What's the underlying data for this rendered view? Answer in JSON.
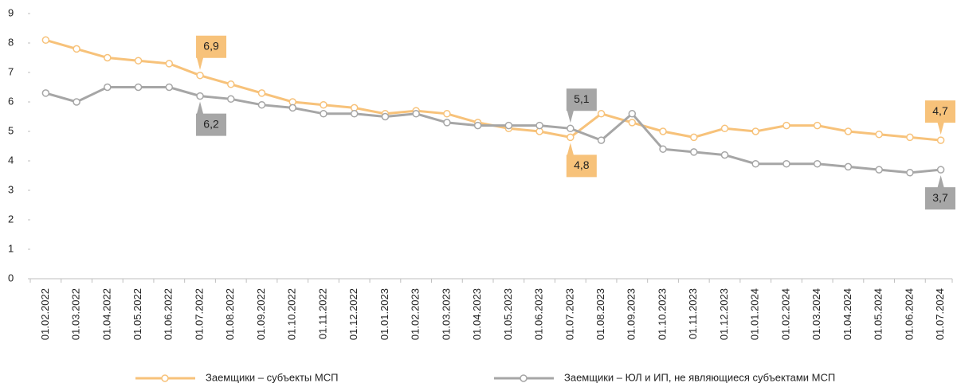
{
  "chart_data": {
    "type": "line",
    "categories": [
      "01.02.2022",
      "01.03.2022",
      "01.04.2022",
      "01.05.2022",
      "01.06.2022",
      "01.07.2022",
      "01.08.2022",
      "01.09.2022",
      "01.10.2022",
      "01.11.2022",
      "01.12.2022",
      "01.01.2023",
      "01.02.2023",
      "01.03.2023",
      "01.04.2023",
      "01.05.2023",
      "01.06.2023",
      "01.07.2023",
      "01.08.2023",
      "01.09.2023",
      "01.10.2023",
      "01.11.2023",
      "01.12.2023",
      "01.01.2024",
      "01.02.2024",
      "01.03.2024",
      "01.04.2024",
      "01.05.2024",
      "01.06.2024",
      "01.07.2024"
    ],
    "series": [
      {
        "name": "Заемщики – субъекты МСП",
        "color": "#f7c27a",
        "values": [
          8.1,
          7.8,
          7.5,
          7.4,
          7.3,
          6.9,
          6.6,
          6.3,
          6.0,
          5.9,
          5.8,
          5.6,
          5.7,
          5.6,
          5.3,
          5.1,
          5.0,
          4.8,
          5.6,
          5.3,
          5.0,
          4.8,
          5.1,
          5.0,
          5.2,
          5.2,
          5.0,
          4.9,
          4.8,
          4.7
        ],
        "value_labels": [
          null,
          null,
          null,
          null,
          null,
          "6,9",
          null,
          null,
          null,
          null,
          null,
          null,
          null,
          null,
          null,
          null,
          null,
          "4,8",
          null,
          null,
          null,
          null,
          null,
          null,
          null,
          null,
          null,
          null,
          null,
          "4,7"
        ]
      },
      {
        "name": "Заемщики – ЮЛ и ИП, не являющиеся субъектами МСП",
        "color": "#a6a6a6",
        "values": [
          6.3,
          6.0,
          6.5,
          6.5,
          6.5,
          6.2,
          6.1,
          5.9,
          5.8,
          5.6,
          5.6,
          5.5,
          5.6,
          5.3,
          5.2,
          5.2,
          5.2,
          5.1,
          4.7,
          5.6,
          4.4,
          4.3,
          4.2,
          3.9,
          3.9,
          3.9,
          3.8,
          3.7,
          3.6,
          3.7
        ],
        "value_labels": [
          null,
          null,
          null,
          null,
          null,
          "6,2",
          null,
          null,
          null,
          null,
          null,
          null,
          null,
          null,
          null,
          null,
          null,
          "5,1",
          null,
          null,
          null,
          null,
          null,
          null,
          null,
          null,
          null,
          null,
          null,
          "3,7"
        ]
      }
    ],
    "ylim": [
      0,
      9
    ],
    "yticks": [
      0,
      1,
      2,
      3,
      4,
      5,
      6,
      7,
      8,
      9
    ],
    "grid": false,
    "legend": "bottom"
  }
}
